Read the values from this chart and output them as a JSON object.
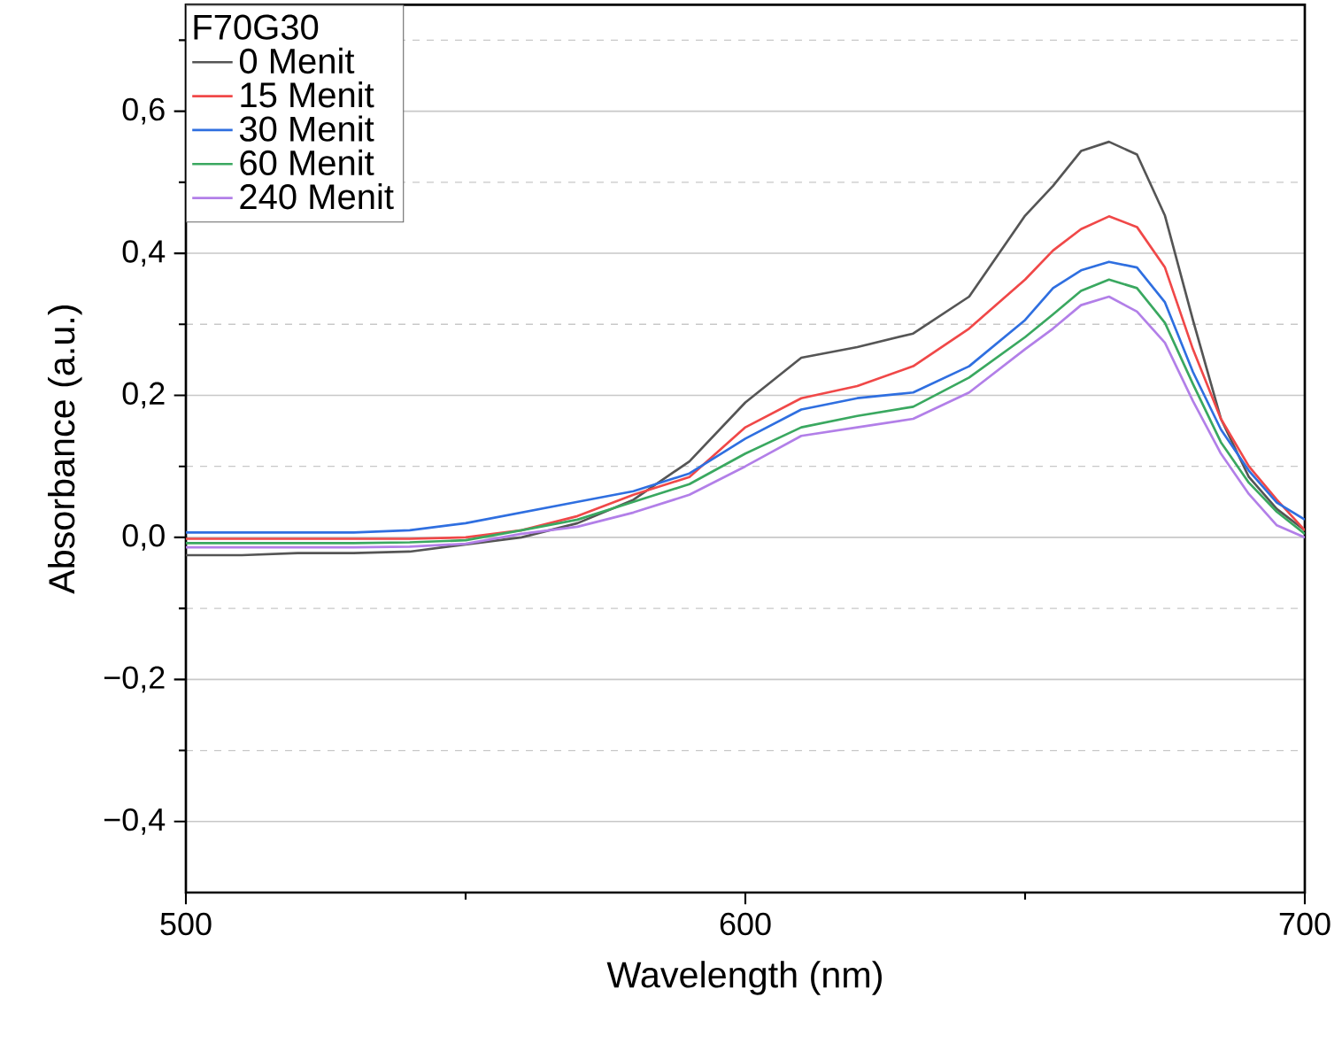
{
  "chart_data": {
    "type": "line",
    "xlabel": "Wavelength (nm)",
    "ylabel": "Absorbance (a.u.)",
    "legend_title": "F70G30",
    "legend": "top left",
    "grid": "y",
    "marker": "none",
    "line_style": "solid",
    "x": [
      500,
      510,
      520,
      530,
      540,
      550,
      560,
      570,
      580,
      590,
      600,
      610,
      620,
      630,
      640,
      650,
      655,
      660,
      665,
      670,
      675,
      680,
      685,
      690,
      695,
      700
    ],
    "series": [
      {
        "name": "0 Menit",
        "color": "#555555",
        "values": [
          -0.025,
          -0.025,
          -0.022,
          -0.022,
          -0.02,
          -0.01,
          0.0,
          0.02,
          0.053,
          0.107,
          0.19,
          0.253,
          0.268,
          0.287,
          0.339,
          0.453,
          0.495,
          0.544,
          0.557,
          0.539,
          0.453,
          0.306,
          0.167,
          0.085,
          0.04,
          0.01
        ]
      },
      {
        "name": "15 Menit",
        "color": "#f04848",
        "values": [
          -0.002,
          -0.002,
          -0.002,
          -0.002,
          -0.002,
          0.0,
          0.01,
          0.03,
          0.06,
          0.085,
          0.155,
          0.196,
          0.213,
          0.241,
          0.294,
          0.363,
          0.404,
          0.434,
          0.452,
          0.437,
          0.38,
          0.265,
          0.167,
          0.1,
          0.053,
          0.01
        ]
      },
      {
        "name": "30 Menit",
        "color": "#2f6fe0",
        "values": [
          0.007,
          0.007,
          0.007,
          0.007,
          0.01,
          0.02,
          0.035,
          0.05,
          0.065,
          0.09,
          0.139,
          0.18,
          0.196,
          0.204,
          0.241,
          0.306,
          0.351,
          0.376,
          0.388,
          0.38,
          0.331,
          0.233,
          0.152,
          0.094,
          0.049,
          0.025
        ]
      },
      {
        "name": "60 Menit",
        "color": "#3aa860",
        "values": [
          -0.008,
          -0.008,
          -0.008,
          -0.008,
          -0.007,
          -0.004,
          0.01,
          0.025,
          0.05,
          0.075,
          0.118,
          0.155,
          0.171,
          0.184,
          0.225,
          0.282,
          0.314,
          0.347,
          0.363,
          0.351,
          0.302,
          0.216,
          0.134,
          0.077,
          0.036,
          0.005
        ]
      },
      {
        "name": "240 Menit",
        "color": "#b27fe8",
        "values": [
          -0.014,
          -0.014,
          -0.014,
          -0.014,
          -0.013,
          -0.009,
          0.005,
          0.015,
          0.035,
          0.06,
          0.1,
          0.143,
          0.155,
          0.167,
          0.204,
          0.265,
          0.294,
          0.327,
          0.339,
          0.318,
          0.274,
          0.192,
          0.118,
          0.061,
          0.017,
          0.0
        ]
      }
    ],
    "xlim": [
      500,
      700
    ],
    "ylim": [
      -0.5,
      0.75
    ],
    "xticks": [
      500,
      {
        "value": 550,
        "label": null
      },
      600,
      {
        "value": 650,
        "label": null
      },
      700
    ],
    "yticks": [
      {
        "value": -0.4,
        "label": "−0,4"
      },
      {
        "value": -0.3,
        "label": null
      },
      {
        "value": -0.2,
        "label": "−0,2"
      },
      {
        "value": -0.1,
        "label": null
      },
      {
        "value": 0,
        "label": "0,0"
      },
      {
        "value": 0.1,
        "label": null
      },
      {
        "value": 0.2,
        "label": "0,2"
      },
      {
        "value": 0.3,
        "label": null
      },
      {
        "value": 0.4,
        "label": "0,4"
      },
      {
        "value": 0.5,
        "label": null
      },
      {
        "value": 0.6,
        "label": "0,6"
      },
      {
        "value": 0.7,
        "label": null
      }
    ]
  }
}
